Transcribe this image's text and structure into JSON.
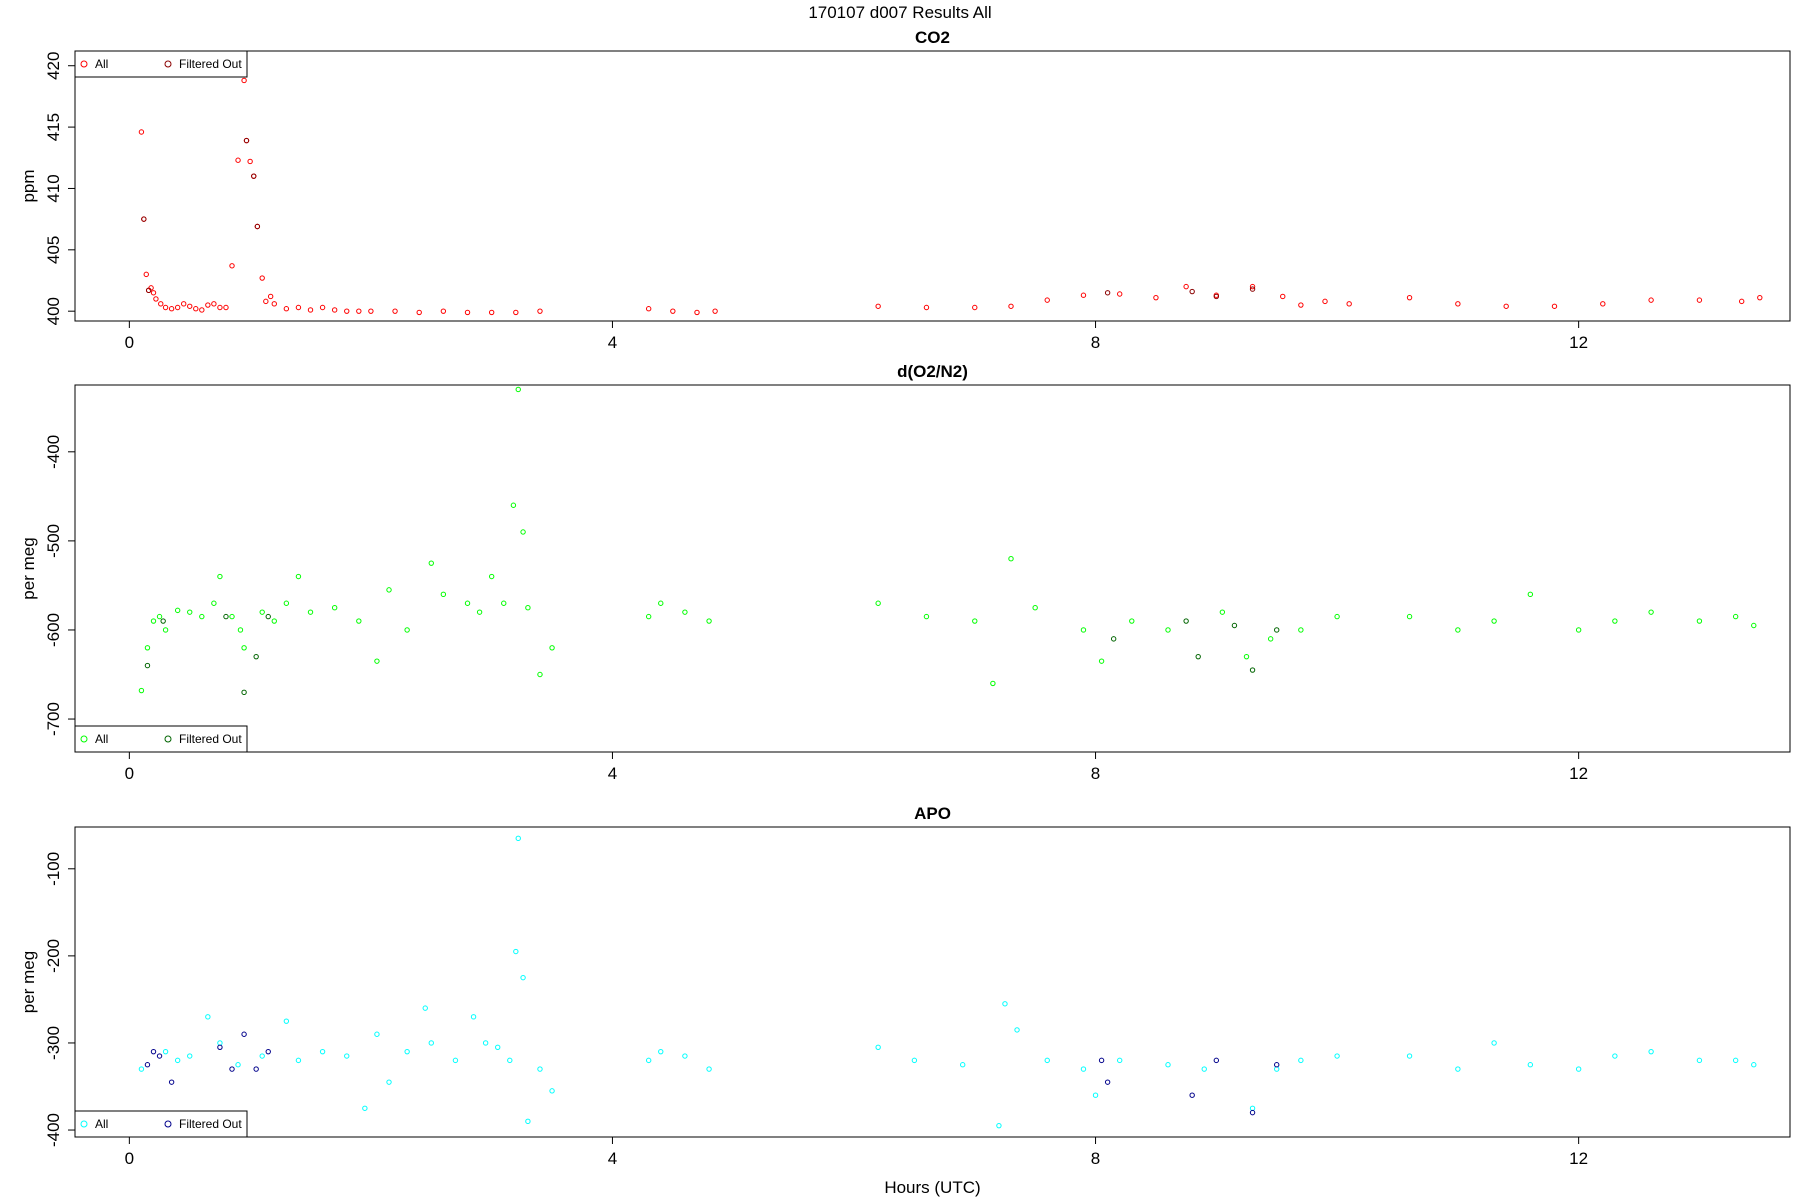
{
  "figure": {
    "title": "170107   d007   Results All"
  },
  "chart_data": [
    {
      "type": "scatter",
      "title": "CO2",
      "xlabel": "",
      "ylabel": "ppm",
      "xlim": [
        -0.45,
        13.75
      ],
      "ylim": [
        399.2,
        421.2
      ],
      "xticks": [
        0,
        4,
        8,
        12
      ],
      "yticks": [
        400,
        405,
        410,
        415,
        420
      ],
      "legend": {
        "position": "top-left",
        "entries": [
          {
            "name": "All",
            "color": "#ff0000"
          },
          {
            "name": "Filtered Out",
            "color": "#8b0000"
          }
        ]
      },
      "series": [
        {
          "name": "All",
          "color": "#ff0000",
          "x": [
            0.1,
            0.12,
            0.14,
            0.16,
            0.18,
            0.2,
            0.22,
            0.26,
            0.3,
            0.35,
            0.4,
            0.45,
            0.5,
            0.55,
            0.6,
            0.65,
            0.7,
            0.75,
            0.8,
            0.85,
            0.9,
            0.95,
            0.97,
            1.0,
            1.03,
            1.06,
            1.1,
            1.13,
            1.17,
            1.2,
            1.3,
            1.4,
            1.5,
            1.6,
            1.7,
            1.8,
            1.9,
            2.0,
            2.2,
            2.4,
            2.6,
            2.8,
            3.0,
            3.2,
            3.4,
            4.3,
            4.5,
            4.7,
            4.85,
            6.2,
            6.6,
            7.0,
            7.3,
            7.6,
            7.9,
            8.2,
            8.5,
            8.75,
            9.0,
            9.3,
            9.55,
            9.7,
            9.9,
            10.1,
            10.6,
            11.0,
            11.4,
            11.8,
            12.2,
            12.6,
            13.0,
            13.35,
            13.5
          ],
          "y": [
            414.6,
            407.5,
            403.0,
            401.7,
            401.9,
            401.5,
            401.0,
            400.6,
            400.3,
            400.2,
            400.3,
            400.6,
            400.4,
            400.2,
            400.1,
            400.5,
            400.6,
            400.3,
            400.3,
            403.7,
            412.3,
            418.8,
            413.9,
            412.2,
            411.0,
            406.9,
            402.7,
            400.8,
            401.2,
            400.6,
            400.2,
            400.3,
            400.1,
            400.3,
            400.1,
            400.0,
            400.0,
            400.0,
            400.0,
            399.9,
            400.0,
            399.9,
            399.9,
            399.9,
            400.0,
            400.2,
            400.0,
            399.9,
            400.0,
            400.4,
            400.3,
            400.3,
            400.4,
            400.9,
            401.3,
            401.4,
            401.1,
            402.0,
            401.3,
            402.0,
            401.2,
            400.5,
            400.8,
            400.6,
            401.1,
            400.6,
            400.4,
            400.4,
            400.6,
            400.9,
            400.9,
            400.8,
            401.1
          ]
        },
        {
          "name": "Filtered Out",
          "color": "#8b0000",
          "x": [
            0.12,
            0.16,
            0.97,
            1.03,
            1.06,
            8.1,
            8.8,
            9.0,
            9.3
          ],
          "y": [
            407.5,
            401.7,
            413.9,
            411.0,
            406.9,
            401.5,
            401.6,
            401.2,
            401.8
          ]
        }
      ]
    },
    {
      "type": "scatter",
      "title": "d(O2/N2)",
      "xlabel": "",
      "ylabel": "per meg",
      "xlim": [
        -0.45,
        13.75
      ],
      "ylim": [
        -737,
        -325
      ],
      "xticks": [
        0,
        4,
        8,
        12
      ],
      "yticks": [
        -400,
        -500,
        -600,
        -700
      ],
      "legend": {
        "position": "bottom-left",
        "entries": [
          {
            "name": "All",
            "color": "#00ff00"
          },
          {
            "name": "Filtered Out",
            "color": "#006400"
          }
        ]
      },
      "series": [
        {
          "name": "All",
          "color": "#00ff00",
          "x": [
            0.1,
            0.15,
            0.2,
            0.25,
            0.3,
            0.4,
            0.5,
            0.6,
            0.7,
            0.75,
            0.85,
            0.92,
            0.95,
            1.1,
            1.2,
            1.3,
            1.4,
            1.5,
            1.7,
            1.9,
            2.05,
            2.15,
            2.3,
            2.5,
            2.6,
            2.8,
            2.9,
            3.0,
            3.1,
            3.18,
            3.22,
            3.26,
            3.3,
            3.4,
            3.5,
            4.3,
            4.4,
            4.6,
            4.8,
            6.2,
            6.6,
            7.0,
            7.15,
            7.3,
            7.5,
            7.9,
            8.05,
            8.3,
            8.6,
            9.05,
            9.25,
            9.45,
            9.7,
            10.0,
            10.6,
            11.0,
            11.3,
            11.6,
            12.0,
            12.3,
            12.6,
            13.0,
            13.3,
            13.45
          ],
          "y": [
            -668,
            -620,
            -590,
            -585,
            -600,
            -578,
            -580,
            -585,
            -570,
            -540,
            -585,
            -600,
            -620,
            -580,
            -590,
            -570,
            -540,
            -580,
            -575,
            -590,
            -635,
            -555,
            -600,
            -525,
            -560,
            -570,
            -580,
            -540,
            -570,
            -460,
            -330,
            -490,
            -575,
            -650,
            -620,
            -585,
            -570,
            -580,
            -590,
            -570,
            -585,
            -590,
            -660,
            -520,
            -575,
            -600,
            -635,
            -590,
            -600,
            -580,
            -630,
            -610,
            -600,
            -585,
            -585,
            -600,
            -590,
            -560,
            -600,
            -590,
            -580,
            -590,
            -585,
            -595
          ]
        },
        {
          "name": "Filtered Out",
          "color": "#006400",
          "x": [
            0.15,
            0.28,
            0.8,
            0.95,
            1.05,
            1.15,
            8.15,
            8.75,
            8.85,
            9.15,
            9.3,
            9.5
          ],
          "y": [
            -640,
            -590,
            -585,
            -670,
            -630,
            -585,
            -610,
            -590,
            -630,
            -595,
            -645,
            -600
          ]
        }
      ]
    },
    {
      "type": "scatter",
      "title": "APO",
      "xlabel": "Hours (UTC)",
      "ylabel": "per meg",
      "xlim": [
        -0.45,
        13.75
      ],
      "ylim": [
        -408,
        -52
      ],
      "xticks": [
        0,
        4,
        8,
        12
      ],
      "yticks": [
        -100,
        -200,
        -300,
        -400
      ],
      "legend": {
        "position": "bottom-left",
        "entries": [
          {
            "name": "All",
            "color": "#00ffff"
          },
          {
            "name": "Filtered Out",
            "color": "#00008b"
          }
        ]
      },
      "series": [
        {
          "name": "All",
          "color": "#00ffff",
          "x": [
            0.1,
            0.3,
            0.4,
            0.5,
            0.65,
            0.75,
            0.9,
            1.1,
            1.3,
            1.4,
            1.6,
            1.8,
            1.95,
            2.05,
            2.15,
            2.3,
            2.45,
            2.5,
            2.7,
            2.85,
            2.95,
            3.05,
            3.15,
            3.2,
            3.22,
            3.26,
            3.3,
            3.4,
            3.5,
            4.3,
            4.4,
            4.6,
            4.8,
            6.2,
            6.5,
            6.9,
            7.2,
            7.25,
            7.35,
            7.6,
            7.9,
            8.0,
            8.2,
            8.6,
            8.9,
            9.3,
            9.5,
            9.7,
            10.0,
            10.6,
            11.0,
            11.3,
            11.6,
            12.0,
            12.3,
            12.6,
            13.0,
            13.3,
            13.45
          ],
          "y": [
            -330,
            -310,
            -320,
            -315,
            -270,
            -300,
            -325,
            -315,
            -275,
            -320,
            -310,
            -315,
            -375,
            -290,
            -345,
            -310,
            -260,
            -300,
            -320,
            -270,
            -300,
            -305,
            -320,
            -195,
            -65,
            -225,
            -390,
            -330,
            -355,
            -320,
            -310,
            -315,
            -330,
            -305,
            -320,
            -325,
            -395,
            -255,
            -285,
            -320,
            -330,
            -360,
            -320,
            -325,
            -330,
            -375,
            -330,
            -320,
            -315,
            -315,
            -330,
            -300,
            -325,
            -330,
            -315,
            -310,
            -320,
            -320,
            -325
          ]
        },
        {
          "name": "Filtered Out",
          "color": "#00008b",
          "x": [
            0.15,
            0.2,
            0.25,
            0.35,
            0.75,
            0.85,
            0.95,
            1.05,
            1.15,
            8.05,
            8.1,
            8.8,
            9.0,
            9.3,
            9.5
          ],
          "y": [
            -325,
            -310,
            -315,
            -345,
            -305,
            -330,
            -290,
            -330,
            -310,
            -320,
            -345,
            -360,
            -320,
            -380,
            -325
          ]
        }
      ]
    }
  ]
}
